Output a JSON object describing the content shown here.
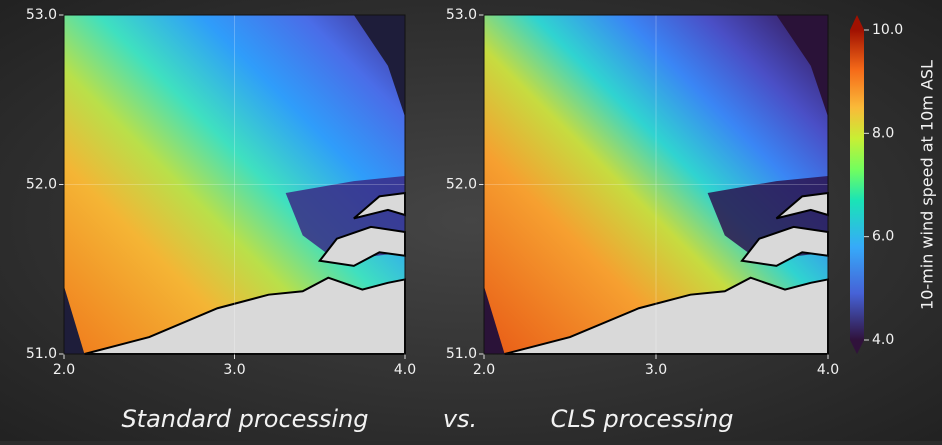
{
  "maps": [
    {
      "caption": "Standard processing",
      "xlim": [
        2,
        4
      ],
      "ylim": [
        51,
        53
      ],
      "xticks": [
        {
          "value": 2,
          "label": "2.0"
        },
        {
          "value": 3,
          "label": "3.0"
        },
        {
          "value": 4,
          "label": "4.0"
        }
      ],
      "yticks": [
        {
          "value": 51,
          "label": "51.0"
        },
        {
          "value": 52,
          "label": "52.0"
        },
        {
          "value": 53,
          "label": "53.0"
        }
      ]
    },
    {
      "caption": "CLS processing",
      "xlim": [
        2,
        4
      ],
      "ylim": [
        51,
        53
      ],
      "xticks": [
        {
          "value": 2,
          "label": "2.0"
        },
        {
          "value": 3,
          "label": "3.0"
        },
        {
          "value": 4,
          "label": "4.0"
        }
      ],
      "yticks": [
        {
          "value": 51,
          "label": "51.0"
        },
        {
          "value": 52,
          "label": "52.0"
        },
        {
          "value": 53,
          "label": "53.0"
        }
      ]
    }
  ],
  "separator": "vs.",
  "colorbar": {
    "label": "10-min wind speed at 10m ASL",
    "lim": [
      4,
      10
    ],
    "ticks": [
      {
        "value": 4,
        "label": "4.0"
      },
      {
        "value": 6,
        "label": "6.0"
      },
      {
        "value": 8,
        "label": "8.0"
      },
      {
        "value": 10,
        "label": "10.0"
      }
    ]
  }
}
